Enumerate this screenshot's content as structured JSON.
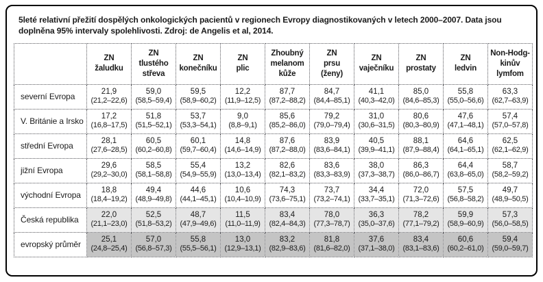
{
  "page": {
    "title": "5leté relativní přežití dospělých onkologických pacientů v regionech Evropy diagnostikovaných v letech 2000–2007. Data jsou doplněna 95% intervaly spolehlivosti. Zdroj: de Angelis et al, 2014."
  },
  "colors": {
    "frame_border": "#000000",
    "cell_border_dotted": "#55555a",
    "row_highlight_light": "#e5e5e5",
    "row_highlight_dark": "#c4c4c4",
    "text": "#1a1a1a"
  },
  "chart_data": {
    "type": "table",
    "title": "5leté relativní přežití dospělých onkologických pacientů v regionech Evropy diagnostikovaných v letech 2000–2007. Data jsou doplněna 95% intervaly spolehlivosti. Zdroj: de Angelis et al, 2014.",
    "columns": [
      "ZN\nžaludku",
      "ZN\ntlustého\nstřeva",
      "ZN\nkonečníku",
      "ZN\nplic",
      "Zhoubný\nmelanom\nkůže",
      "ZN\nprsu\n(ženy)",
      "ZN\nvaječníku",
      "ZN\nprostaty",
      "ZN\nledvin",
      "Non-Hodg-\nkinův\nlymfom"
    ],
    "rows": [
      {
        "label": "severní Evropa",
        "highlight": "none",
        "cells": [
          {
            "v": "21,9",
            "ci": "(21,2–22,6)"
          },
          {
            "v": "59,0",
            "ci": "(58,5–59,4)"
          },
          {
            "v": "59,5",
            "ci": "(58,9–60,2)"
          },
          {
            "v": "12,2",
            "ci": "(11,9–12,5)"
          },
          {
            "v": "87,7",
            "ci": "(87,2–88,2)"
          },
          {
            "v": "84,7",
            "ci": "(84,4–85,1)"
          },
          {
            "v": "41,1",
            "ci": "(40,3–42,0)"
          },
          {
            "v": "85,0",
            "ci": "(84,6–85,3)"
          },
          {
            "v": "55,8",
            "ci": "(55,0–56,6)"
          },
          {
            "v": "63,3",
            "ci": "(62,7–63,9)"
          }
        ]
      },
      {
        "label": "V. Británie a Irsko",
        "highlight": "none",
        "cells": [
          {
            "v": "17,2",
            "ci": "(16,8–17,5)"
          },
          {
            "v": "51,8",
            "ci": "(51,5–52,1)"
          },
          {
            "v": "53,7",
            "ci": "(53,3–54,1)"
          },
          {
            "v": "9,0",
            "ci": "(8,8–9,1)"
          },
          {
            "v": "85,6",
            "ci": "(85,2–86,0)"
          },
          {
            "v": "79,2",
            "ci": "(79,0–79,4)"
          },
          {
            "v": "31,0",
            "ci": "(30,6–31,5)"
          },
          {
            "v": "80,6",
            "ci": "(80,3–80,9)"
          },
          {
            "v": "47,6",
            "ci": "(47,1–48,1)"
          },
          {
            "v": "57,4",
            "ci": "(57,0–57,8)"
          }
        ]
      },
      {
        "label": "střední Evropa",
        "highlight": "none",
        "cells": [
          {
            "v": "28,1",
            "ci": "(27,6–28,5)"
          },
          {
            "v": "60,5",
            "ci": "(60,2–60,8)"
          },
          {
            "v": "60,1",
            "ci": "(59,7–60,4)"
          },
          {
            "v": "14,8",
            "ci": "(14,6–14,9)"
          },
          {
            "v": "87,6",
            "ci": "(87,2–88,0)"
          },
          {
            "v": "83,9",
            "ci": "(83,6–84,1)"
          },
          {
            "v": "40,5",
            "ci": "(39,9–41,1)"
          },
          {
            "v": "88,1",
            "ci": "(87,9–88,4)"
          },
          {
            "v": "64,6",
            "ci": "(64,1–65,1)"
          },
          {
            "v": "62,5",
            "ci": "(62,1–62,9)"
          }
        ]
      },
      {
        "label": "jižní Evropa",
        "highlight": "none",
        "cells": [
          {
            "v": "29,6",
            "ci": "(29,2–30,0)"
          },
          {
            "v": "58,5",
            "ci": "(58,1–58,8)"
          },
          {
            "v": "55,4",
            "ci": "(54,9–55,9)"
          },
          {
            "v": "13,2",
            "ci": "(13,0–13,4)"
          },
          {
            "v": "82,6",
            "ci": "(82,1–83,2)"
          },
          {
            "v": "83,6",
            "ci": "(83,3–83,9)"
          },
          {
            "v": "38,0",
            "ci": "(37,3–38,7)"
          },
          {
            "v": "86,3",
            "ci": "(86,0–86,7)"
          },
          {
            "v": "64,4",
            "ci": "(63,8–65,0)"
          },
          {
            "v": "58,7",
            "ci": "(58,2–59,2)"
          }
        ]
      },
      {
        "label": "východní Evropa",
        "highlight": "none",
        "cells": [
          {
            "v": "18,8",
            "ci": "(18,4–19,2)"
          },
          {
            "v": "49,4",
            "ci": "(48,9–49,8)"
          },
          {
            "v": "44,6",
            "ci": "(44,1–45,1)"
          },
          {
            "v": "10,6",
            "ci": "(10,4–10,9)"
          },
          {
            "v": "74,3",
            "ci": "(73,6–75,1)"
          },
          {
            "v": "73,7",
            "ci": "(73,2–74,1)"
          },
          {
            "v": "34,4",
            "ci": "(33,7–35,1)"
          },
          {
            "v": "72,0",
            "ci": "(71,3–72,6)"
          },
          {
            "v": "57,5",
            "ci": "(56,8–58,2)"
          },
          {
            "v": "49,7",
            "ci": "(48,9–50,5)"
          }
        ]
      },
      {
        "label": "Česká republika",
        "highlight": "light",
        "cells": [
          {
            "v": "22,0",
            "ci": "(21,1–23,0)"
          },
          {
            "v": "52,5",
            "ci": "(51,8–53,2)"
          },
          {
            "v": "48,7",
            "ci": "(47,9–49,6)"
          },
          {
            "v": "11,5",
            "ci": "(11,0–11,9)"
          },
          {
            "v": "83,4",
            "ci": "(82,4–84,3)"
          },
          {
            "v": "78,0",
            "ci": "(77,3–78,7)"
          },
          {
            "v": "36,3",
            "ci": "(35,0–37,6)"
          },
          {
            "v": "78,2",
            "ci": "(77,1–79,2)"
          },
          {
            "v": "59,9",
            "ci": "(58,9–60,9)"
          },
          {
            "v": "57,3",
            "ci": "(56,0–58,5)"
          }
        ]
      },
      {
        "label": "evropský průměr",
        "highlight": "dark",
        "cells": [
          {
            "v": "25,1",
            "ci": "(24,8–25,4)"
          },
          {
            "v": "57,0",
            "ci": "(56,8–57,3)"
          },
          {
            "v": "55,8",
            "ci": "(55,5–56,1)"
          },
          {
            "v": "13,0",
            "ci": "(12,9–13,1)"
          },
          {
            "v": "83,2",
            "ci": "(82,9–83,6)"
          },
          {
            "v": "81,8",
            "ci": "(81,6–82,0)"
          },
          {
            "v": "37,6",
            "ci": "(37,1–38,0)"
          },
          {
            "v": "83,4",
            "ci": "(83,1–83,6)"
          },
          {
            "v": "60,6",
            "ci": "(60,2–61,0)"
          },
          {
            "v": "59,4",
            "ci": "(59,0–59,7)"
          }
        ]
      }
    ]
  }
}
